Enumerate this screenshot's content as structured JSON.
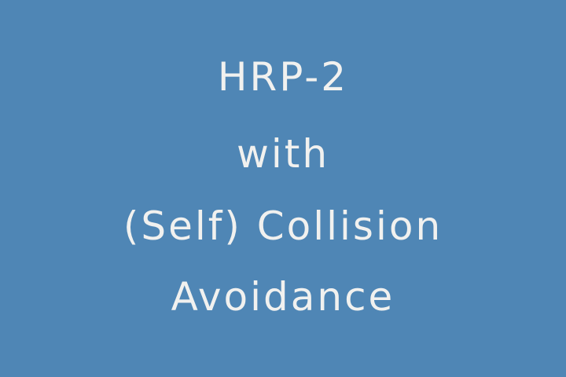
{
  "slide": {
    "background_color": "#4f86b5",
    "text_color": "#f1f1ef",
    "title_lines": [
      "HRP-2",
      "with",
      "(Self) Collision",
      "Avoidance"
    ]
  }
}
